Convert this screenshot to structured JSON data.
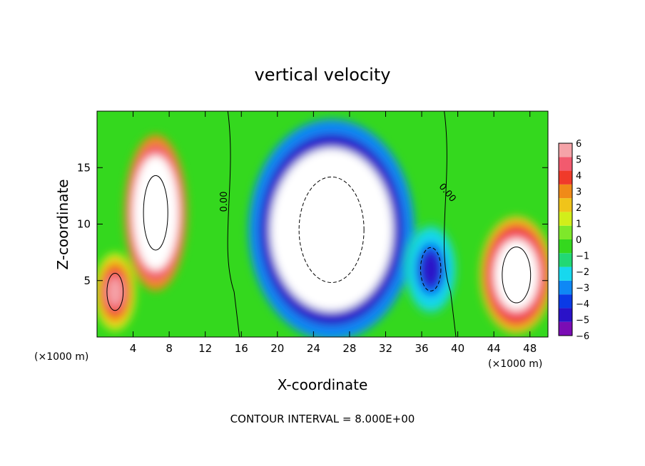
{
  "chart_data": {
    "type": "heatmap",
    "title": "vertical velocity",
    "xlabel": "X-coordinate",
    "ylabel": "Z-coordinate",
    "x_units_left": "(×1000 m)",
    "x_units_right": "(×1000 m)",
    "footer": "CONTOUR INTERVAL = 8.000E+00",
    "xlim": [
      0,
      50
    ],
    "ylim": [
      0,
      20
    ],
    "x_ticks": [
      4,
      8,
      12,
      16,
      20,
      24,
      28,
      32,
      36,
      40,
      44,
      48
    ],
    "y_ticks": [
      5,
      10,
      15
    ],
    "colorbar": {
      "ticks": [
        "6",
        "5",
        "4",
        "3",
        "2",
        "1",
        "0",
        "−1",
        "−2",
        "−3",
        "−4",
        "−5",
        "−6"
      ],
      "range": [
        -6,
        6
      ],
      "colors": [
        "#7a0cb4",
        "#2a12c8",
        "#0a3ae6",
        "#0f88f5",
        "#17d8ee",
        "#22d874",
        "#34d81e",
        "#7ee82a",
        "#d2ee1a",
        "#f0c41a",
        "#f08a18",
        "#f03a2a",
        "#f25a6e",
        "#f5a3a8"
      ]
    },
    "contour_labels": [
      "0.00",
      "0.00"
    ],
    "features": [
      {
        "kind": "updraft",
        "x": 6.5,
        "z": 11,
        "rx": 3.0,
        "rz": 6.0,
        "value": 14
      },
      {
        "kind": "downdraft",
        "x": 26,
        "z": 9.5,
        "rx": 8,
        "rz": 8.5,
        "value": -14
      },
      {
        "kind": "updraft",
        "x": 46.5,
        "z": 5.5,
        "rx": 3.5,
        "rz": 4.5,
        "value": 10
      },
      {
        "kind": "downdraft",
        "x": 37,
        "z": 6,
        "rx": 2.5,
        "rz": 3.5,
        "value": -5
      },
      {
        "kind": "updraft",
        "x": 2,
        "z": 4,
        "rx": 2,
        "rz": 3,
        "value": 6
      }
    ]
  }
}
